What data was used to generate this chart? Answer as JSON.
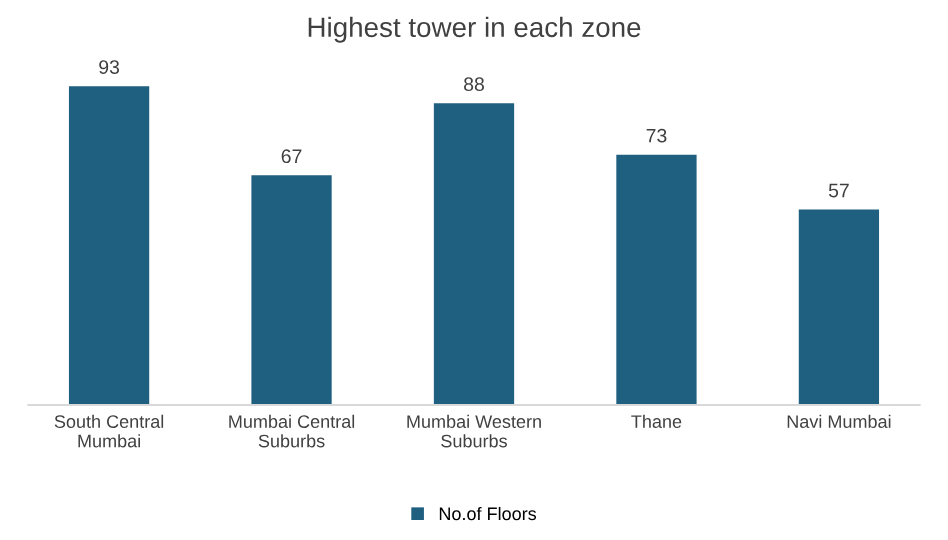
{
  "chart_data": {
    "type": "bar",
    "title": "Highest tower in each zone",
    "categories": [
      "South Central Mumbai",
      "Mumbai Central Suburbs",
      "Mumbai Western Suburbs",
      "Thane",
      "Navi Mumbai"
    ],
    "series": [
      {
        "name": "No.of Floors",
        "color": "#1f5f7f",
        "values": [
          93,
          67,
          88,
          73,
          57
        ]
      }
    ],
    "tick_labels": "x",
    "data_labels": true,
    "legend": "bottom",
    "grid": false
  }
}
